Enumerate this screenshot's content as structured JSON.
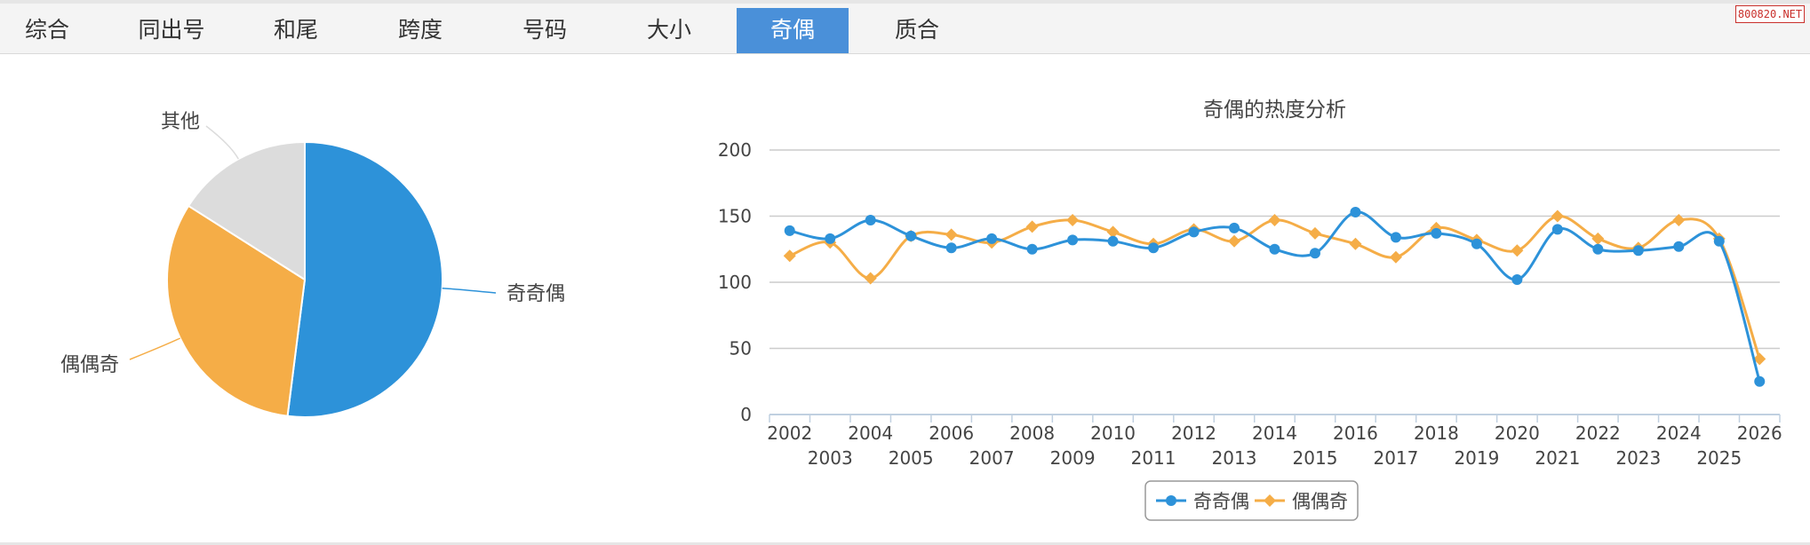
{
  "tabs": [
    {
      "label": "综合",
      "active": false
    },
    {
      "label": "同出号",
      "active": false
    },
    {
      "label": "和尾",
      "active": false
    },
    {
      "label": "跨度",
      "active": false
    },
    {
      "label": "号码",
      "active": false
    },
    {
      "label": "大小",
      "active": false
    },
    {
      "label": "奇偶",
      "active": true
    },
    {
      "label": "质合",
      "active": false
    }
  ],
  "watermark": "800820.NET",
  "colors": {
    "blue": "#2d92d9",
    "orange": "#f5ad47",
    "gray": "#dcdcdc",
    "tab_active": "#4a90d9"
  },
  "chart_data": [
    {
      "type": "pie",
      "title": "",
      "slices": [
        {
          "label": "奇奇偶",
          "value": 52,
          "color": "#2d92d9"
        },
        {
          "label": "偶偶奇",
          "value": 32,
          "color": "#f5ad47"
        },
        {
          "label": "其他",
          "value": 16,
          "color": "#dcdcdc"
        }
      ]
    },
    {
      "type": "line",
      "title": "奇偶的热度分析",
      "x": [
        "2002",
        "2003",
        "2004",
        "2005",
        "2006",
        "2007",
        "2008",
        "2009",
        "2010",
        "2011",
        "2012",
        "2013",
        "2014",
        "2015",
        "2016",
        "2017",
        "2018",
        "2019",
        "2020",
        "2021",
        "2022",
        "2023",
        "2024",
        "2025",
        "2026"
      ],
      "ylim": [
        0,
        200
      ],
      "yticks": [
        0,
        50,
        100,
        150,
        200
      ],
      "grid": true,
      "legend": "bottom-center",
      "series": [
        {
          "name": "奇奇偶",
          "color": "#2d92d9",
          "marker": "circle",
          "values": [
            139,
            133,
            147,
            135,
            126,
            133,
            125,
            132,
            131,
            126,
            138,
            141,
            125,
            122,
            153,
            134,
            137,
            129,
            102,
            140,
            125,
            124,
            127,
            131,
            25
          ]
        },
        {
          "name": "偶偶奇",
          "color": "#f5ad47",
          "marker": "diamond",
          "values": [
            120,
            130,
            103,
            135,
            136,
            130,
            142,
            147,
            138,
            129,
            140,
            131,
            147,
            137,
            129,
            119,
            141,
            132,
            124,
            150,
            133,
            126,
            147,
            133,
            42
          ]
        }
      ]
    }
  ]
}
